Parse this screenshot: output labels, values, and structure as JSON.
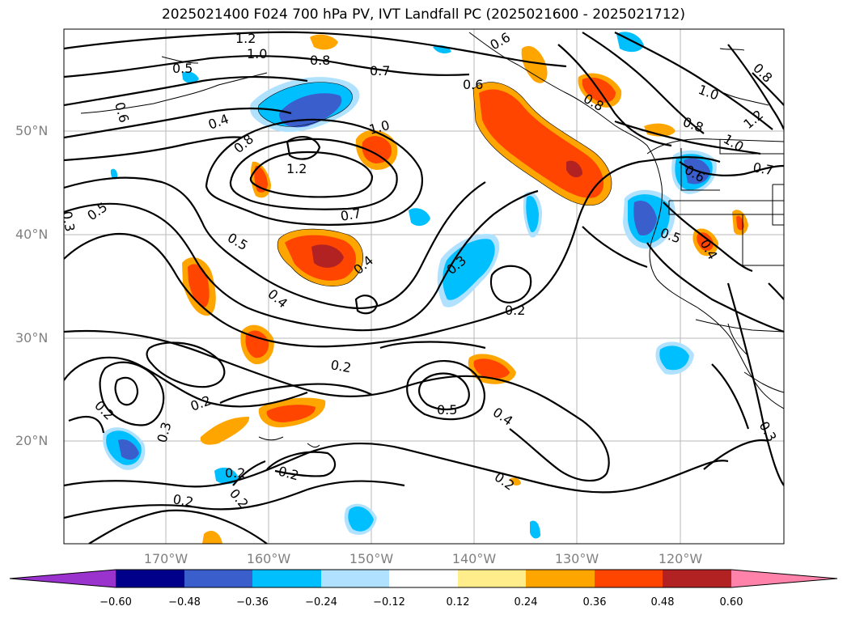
{
  "title": "2025021400 F024 700 hPa PV, IVT Landfall PC (2025021600 - 2025021712)",
  "lat_labels": [
    "50°N",
    "40°N",
    "30°N",
    "20°N"
  ],
  "lon_labels": [
    "170°W",
    "160°W",
    "150°W",
    "140°W",
    "130°W",
    "120°W"
  ],
  "colorbar": {
    "ticks": [
      "−0.60",
      "−0.48",
      "−0.36",
      "−0.24",
      "−0.12",
      "0.12",
      "0.24",
      "0.36",
      "0.48",
      "0.60"
    ],
    "colors": [
      "#9a32cd",
      "#00008b",
      "#3a5fcd",
      "#00bfff",
      "#b0e2ff",
      "#ffffff",
      "#ffec8b",
      "#ffa500",
      "#ff4500",
      "#b22222",
      "#ff82ab"
    ]
  },
  "contour_labels": [
    "1.2",
    "1.0",
    "0.8",
    "0.5",
    "0.6",
    "0.4",
    "0.8",
    "0.7",
    "1.0",
    "1.2",
    "0.6",
    "0.5",
    "0.7",
    "0.5",
    "0.4",
    "0.3",
    "0.2",
    "0.4",
    "0.2",
    "0.2",
    "0.5",
    "0.4",
    "0.2",
    "0.2",
    "0.3",
    "0.2",
    "0.2",
    "0.2",
    "0.3",
    "1.0",
    "0.8",
    "1.2",
    "0.8",
    "1.0",
    "0.6",
    "0.7",
    "0.5",
    "0.4",
    "0.8",
    "0.6",
    "0.2",
    "0.3"
  ]
}
